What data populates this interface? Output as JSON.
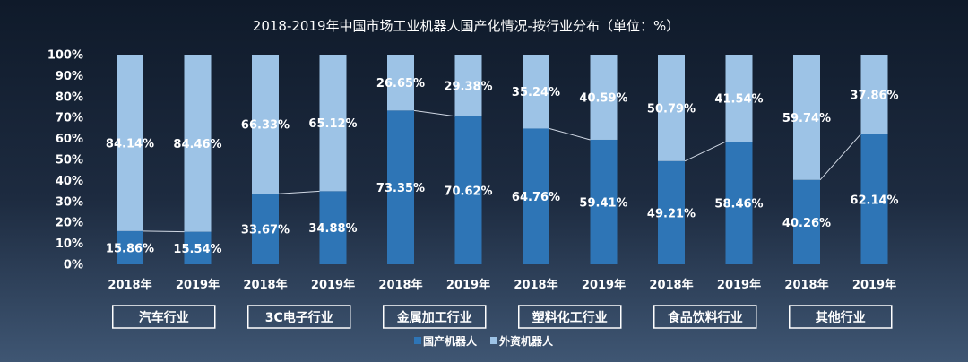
{
  "chart_data": {
    "type": "bar",
    "stacked": true,
    "percent_stacked": true,
    "title": "2018-2019年中国市场工业机器人国产化情况-按行业分布（单位：%）",
    "yticks": [
      "0%",
      "10%",
      "20%",
      "30%",
      "40%",
      "50%",
      "60%",
      "70%",
      "80%",
      "90%",
      "100%"
    ],
    "ylim": [
      0,
      100
    ],
    "categories": [
      "2018年",
      "2019年",
      "2018年",
      "2019年",
      "2018年",
      "2019年",
      "2018年",
      "2019年",
      "2018年",
      "2019年",
      "2018年",
      "2019年"
    ],
    "groups": [
      "汽车行业",
      "3C电子行业",
      "金属加工行业",
      "塑料化工行业",
      "食品饮料行业",
      "其他行业"
    ],
    "series": [
      {
        "name": "国产机器人",
        "color": "#2e75b6",
        "values": [
          15.86,
          15.54,
          33.67,
          34.88,
          73.35,
          70.62,
          64.76,
          59.41,
          49.21,
          58.46,
          40.26,
          62.14
        ],
        "labels": [
          "15.86%",
          "15.54%",
          "33.67%",
          "34.88%",
          "73.35%",
          "70.62%",
          "64.76%",
          "59.41%",
          "49.21%",
          "58.46%",
          "40.26%",
          "62.14%"
        ]
      },
      {
        "name": "外资机器人",
        "color": "#9dc3e6",
        "values": [
          84.14,
          84.46,
          66.33,
          65.12,
          26.65,
          29.38,
          35.24,
          40.59,
          50.79,
          41.54,
          59.74,
          37.86
        ],
        "labels": [
          "84.14%",
          "84.46%",
          "66.33%",
          "65.12%",
          "26.65%",
          "29.38%",
          "35.24%",
          "40.59%",
          "50.79%",
          "41.54%",
          "59.74%",
          "37.86%"
        ]
      }
    ],
    "series_lines": true,
    "grid": false,
    "legend_position": "bottom"
  }
}
